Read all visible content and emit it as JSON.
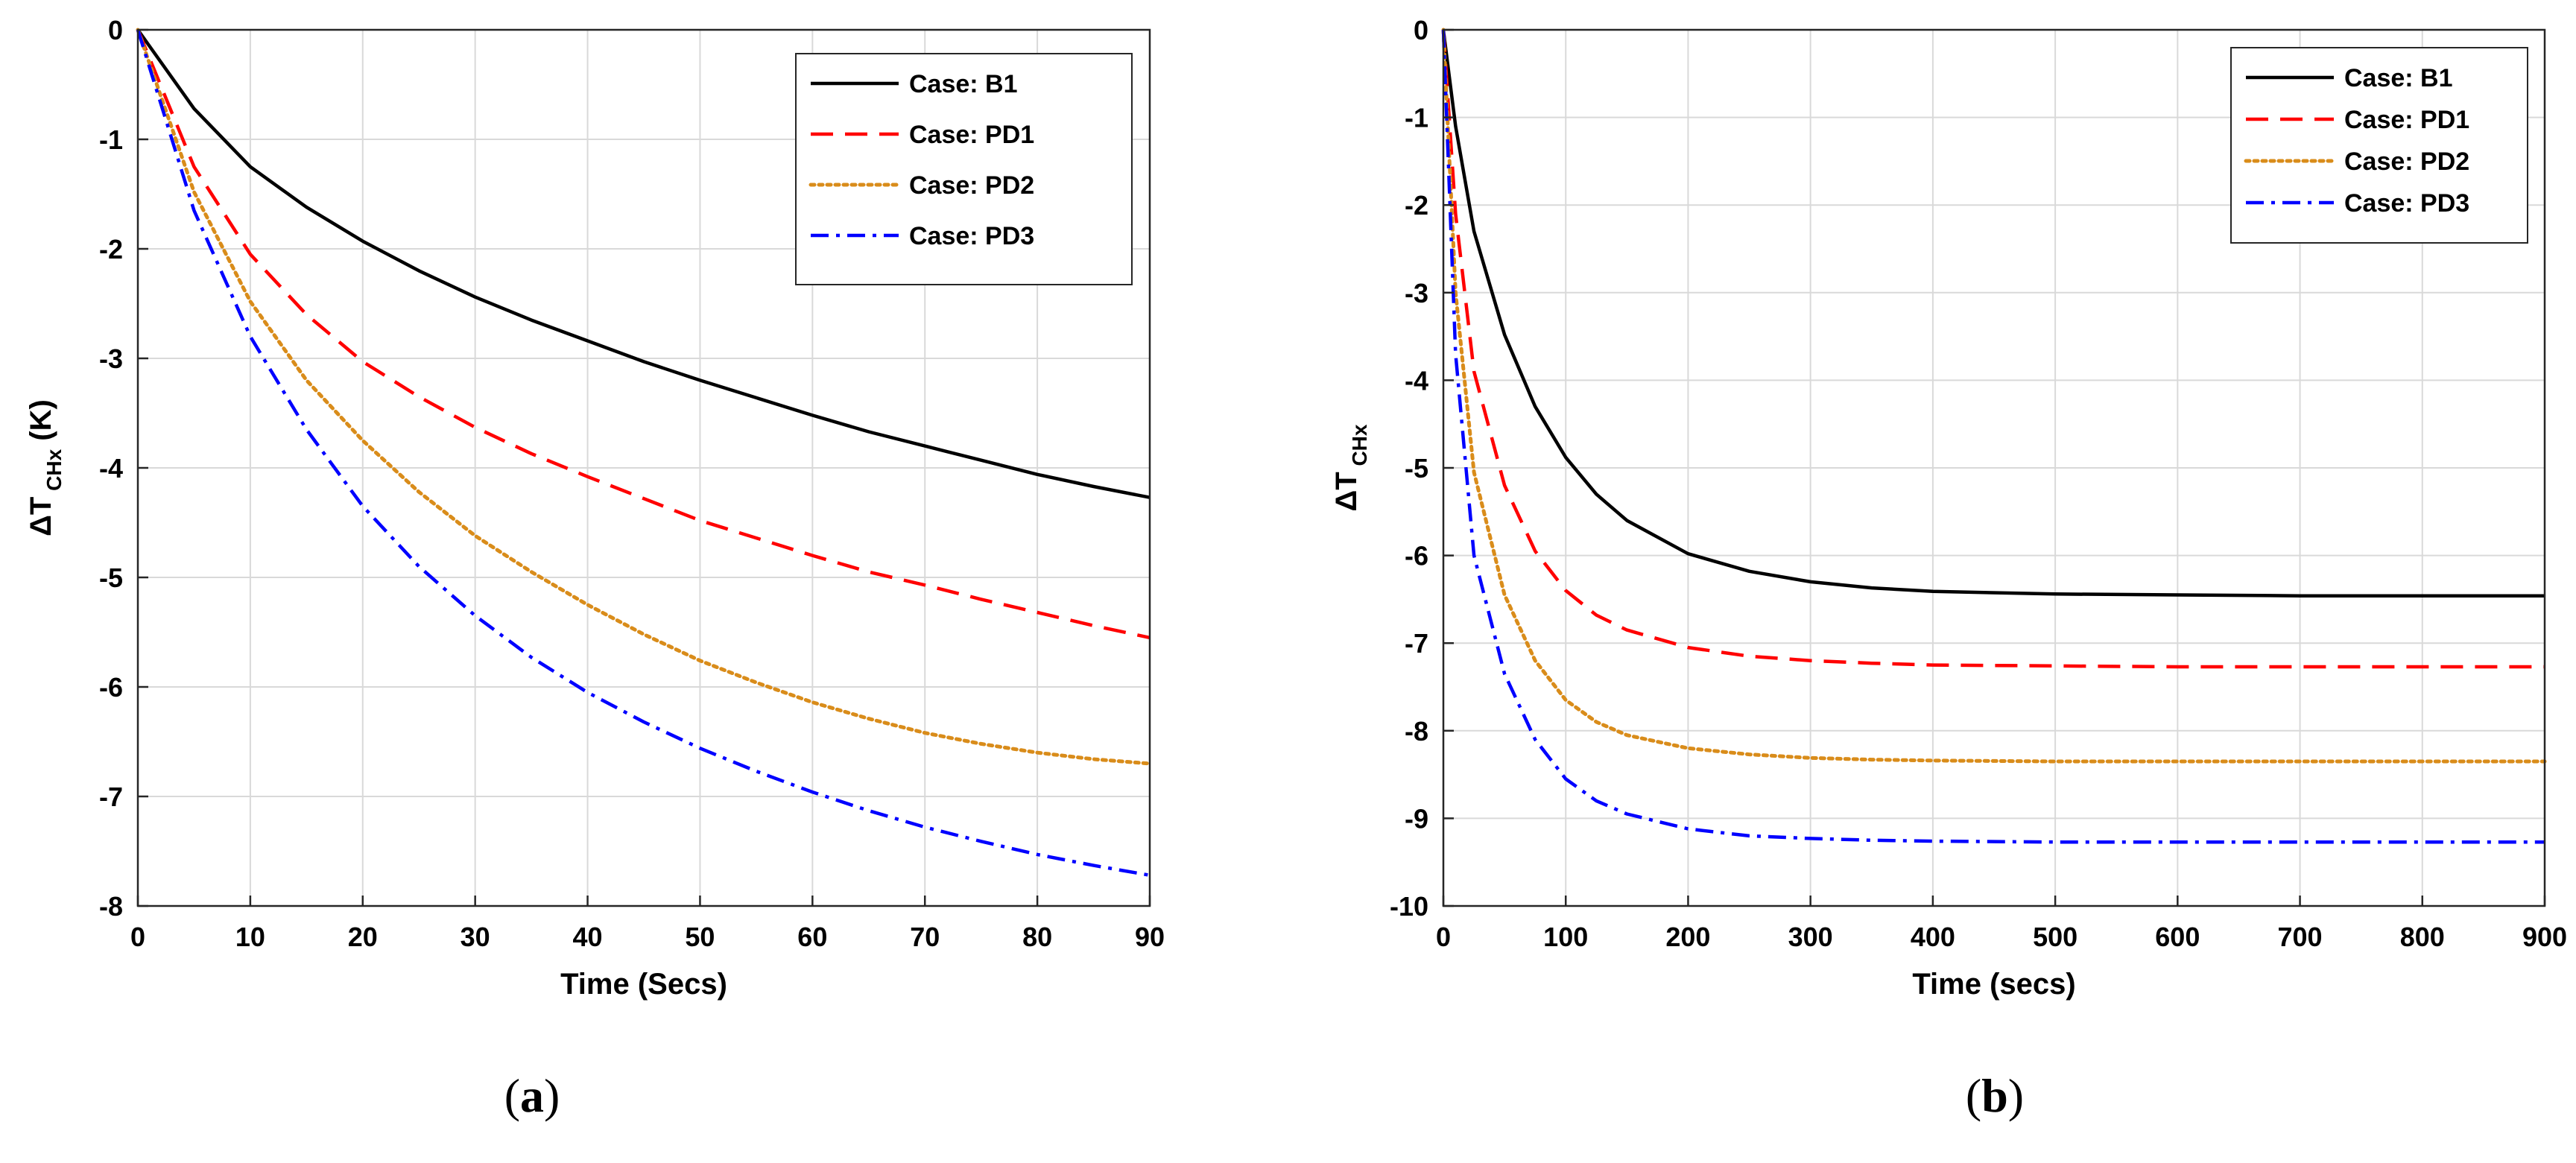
{
  "chart_data": [
    {
      "id": "a",
      "type": "line",
      "caption_letter": "a",
      "xlabel": "Time (Secs)",
      "ylabel_prefix": "ΔT",
      "ylabel_sub": "CHx",
      "ylabel_suffix": " (K)",
      "xlim": [
        0,
        90
      ],
      "ylim": [
        -8,
        0
      ],
      "xticks": [
        0,
        10,
        20,
        30,
        40,
        50,
        60,
        70,
        80,
        90
      ],
      "yticks": [
        0,
        -1,
        -2,
        -3,
        -4,
        -5,
        -6,
        -7,
        -8
      ],
      "grid": true,
      "legend_position": "top-right",
      "x": [
        0,
        5,
        10,
        15,
        20,
        25,
        30,
        35,
        40,
        45,
        50,
        55,
        60,
        65,
        70,
        75,
        80,
        85,
        90
      ],
      "series": [
        {
          "name": "Case: B1",
          "color": "#000000",
          "style": "solid",
          "values": [
            0,
            -0.72,
            -1.25,
            -1.62,
            -1.93,
            -2.2,
            -2.44,
            -2.65,
            -2.84,
            -3.03,
            -3.2,
            -3.36,
            -3.52,
            -3.67,
            -3.8,
            -3.93,
            -4.06,
            -4.17,
            -4.27
          ]
        },
        {
          "name": "Case: PD1",
          "color": "#ff0000",
          "style": "dashed",
          "values": [
            0,
            -1.25,
            -2.05,
            -2.6,
            -3.03,
            -3.35,
            -3.63,
            -3.87,
            -4.08,
            -4.28,
            -4.48,
            -4.64,
            -4.8,
            -4.95,
            -5.07,
            -5.2,
            -5.32,
            -5.44,
            -5.55
          ]
        },
        {
          "name": "Case: PD2",
          "color": "#d98c1a",
          "style": "dotted",
          "values": [
            0,
            -1.48,
            -2.48,
            -3.2,
            -3.75,
            -4.22,
            -4.62,
            -4.95,
            -5.25,
            -5.52,
            -5.76,
            -5.96,
            -6.14,
            -6.29,
            -6.42,
            -6.52,
            -6.6,
            -6.66,
            -6.7
          ]
        },
        {
          "name": "Case: PD3",
          "color": "#0000ff",
          "style": "dashdot",
          "values": [
            0,
            -1.65,
            -2.8,
            -3.65,
            -4.35,
            -4.9,
            -5.35,
            -5.73,
            -6.05,
            -6.32,
            -6.56,
            -6.77,
            -6.96,
            -7.13,
            -7.28,
            -7.41,
            -7.53,
            -7.63,
            -7.72
          ]
        }
      ]
    },
    {
      "id": "b",
      "type": "line",
      "caption_letter": "b",
      "xlabel": "Time (secs)",
      "ylabel_prefix": "ΔT",
      "ylabel_sub": "CHx",
      "ylabel_suffix": "",
      "xlim": [
        0,
        900
      ],
      "ylim": [
        -10,
        0
      ],
      "xticks": [
        0,
        100,
        200,
        300,
        400,
        500,
        600,
        700,
        800,
        900
      ],
      "yticks": [
        0,
        -1,
        -2,
        -3,
        -4,
        -5,
        -6,
        -7,
        -8,
        -9,
        -10
      ],
      "grid": true,
      "legend_position": "top-right",
      "x": [
        0,
        10,
        25,
        50,
        75,
        100,
        125,
        150,
        200,
        250,
        300,
        350,
        400,
        500,
        600,
        700,
        800,
        900
      ],
      "series": [
        {
          "name": "Case: B1",
          "color": "#000000",
          "style": "solid",
          "values": [
            0,
            -1.1,
            -2.3,
            -3.48,
            -4.3,
            -4.88,
            -5.3,
            -5.6,
            -5.98,
            -6.18,
            -6.3,
            -6.37,
            -6.41,
            -6.44,
            -6.45,
            -6.46,
            -6.46,
            -6.46
          ]
        },
        {
          "name": "Case: PD1",
          "color": "#ff0000",
          "style": "dashed",
          "values": [
            0,
            -2.1,
            -3.9,
            -5.2,
            -5.95,
            -6.4,
            -6.68,
            -6.85,
            -7.05,
            -7.15,
            -7.2,
            -7.23,
            -7.25,
            -7.26,
            -7.27,
            -7.27,
            -7.27,
            -7.27
          ]
        },
        {
          "name": "Case: PD2",
          "color": "#d98c1a",
          "style": "dotted",
          "values": [
            0,
            -3.0,
            -5.05,
            -6.45,
            -7.2,
            -7.65,
            -7.9,
            -8.05,
            -8.2,
            -8.27,
            -8.31,
            -8.33,
            -8.34,
            -8.35,
            -8.35,
            -8.35,
            -8.35,
            -8.35
          ]
        },
        {
          "name": "Case: PD3",
          "color": "#0000ff",
          "style": "dashdot",
          "values": [
            0,
            -3.7,
            -6.0,
            -7.35,
            -8.1,
            -8.55,
            -8.8,
            -8.95,
            -9.12,
            -9.2,
            -9.23,
            -9.25,
            -9.26,
            -9.27,
            -9.27,
            -9.27,
            -9.27,
            -9.27
          ]
        }
      ]
    }
  ]
}
